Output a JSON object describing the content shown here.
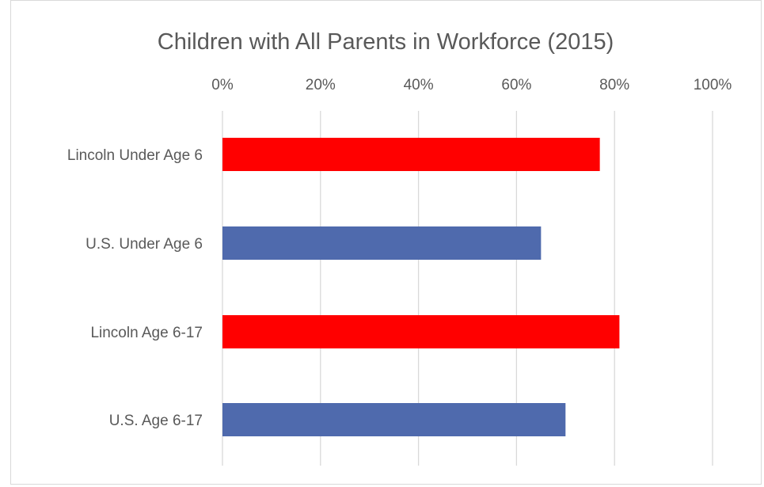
{
  "chart_data": {
    "type": "bar",
    "orientation": "horizontal",
    "title": "Children with All Parents in Workforce (2015)",
    "xlabel": "",
    "ylabel": "",
    "xlim": [
      0,
      100
    ],
    "x_ticks": [
      "0%",
      "20%",
      "40%",
      "60%",
      "80%",
      "100%"
    ],
    "axis_position": "top",
    "grid": true,
    "categories": [
      "Lincoln Under Age 6",
      "U.S. Under Age 6",
      "Lincoln Age 6-17",
      "U.S. Age 6-17"
    ],
    "values": [
      77,
      65,
      81,
      70
    ],
    "unit": "%",
    "colors": [
      "#ff0000",
      "#4f6aad",
      "#ff0000",
      "#4f6aad"
    ],
    "gridline_color": "#d9d9d9"
  }
}
